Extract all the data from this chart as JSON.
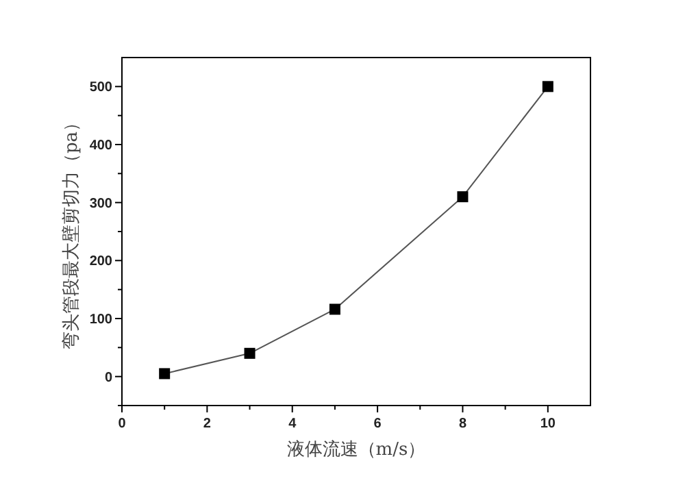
{
  "chart_data": {
    "type": "line",
    "xlabel": "液体流速（m/s）",
    "ylabel": "弯头管段最大壁剪切力（pa）",
    "x": [
      1,
      3,
      5,
      8,
      10
    ],
    "values": [
      5,
      40,
      116,
      310,
      500
    ],
    "color": "#000000",
    "marker": "square",
    "line_style": "solid",
    "xlim": [
      0,
      11
    ],
    "ylim": [
      -50,
      550
    ],
    "xticks": [
      0,
      {
        "value": 1,
        "label": null
      },
      2,
      {
        "value": 3,
        "label": null
      },
      4,
      {
        "value": 5,
        "label": null
      },
      6,
      {
        "value": 7,
        "label": null
      },
      8,
      {
        "value": 9,
        "label": null
      },
      10
    ],
    "yticks": [
      {
        "value": -50,
        "label": null
      },
      0,
      {
        "value": 50,
        "label": null
      },
      100,
      {
        "value": 150,
        "label": null
      },
      200,
      {
        "value": 250,
        "label": null
      },
      300,
      {
        "value": 350,
        "label": null
      },
      400,
      {
        "value": 450,
        "label": null
      },
      500
    ]
  }
}
